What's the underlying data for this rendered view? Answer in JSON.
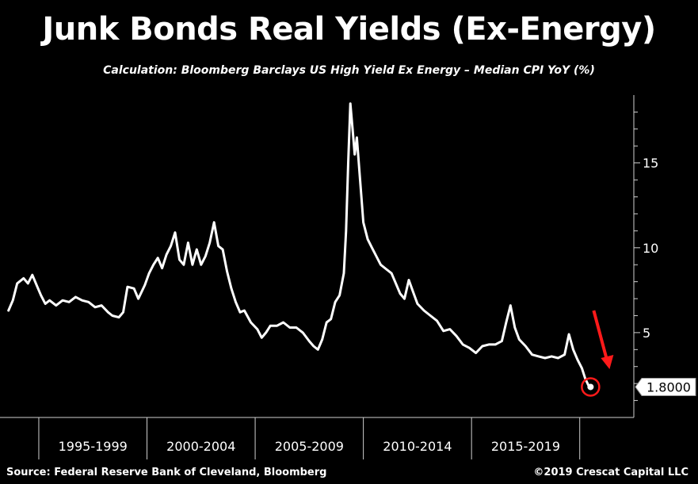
{
  "chart_data": {
    "type": "line",
    "title": "Junk Bonds Real Yields (Ex-Energy)",
    "subtitle": "Calculation: Bloomberg Barclays US High Yield Ex Energy – Median CPI YoY (%)",
    "xlabel": "",
    "ylabel": "",
    "ylim": [
      0,
      19
    ],
    "xlim": [
      1993.0,
      2022.0
    ],
    "y_ticks": [
      5,
      10,
      15
    ],
    "x_period_labels": [
      {
        "label": "1995-1999",
        "center": 1997.0
      },
      {
        "label": "2000-2004",
        "center": 2002.0
      },
      {
        "label": "2005-2009",
        "center": 2007.0
      },
      {
        "label": "2010-2014",
        "center": 2012.0
      },
      {
        "label": "2015-2019",
        "center": 2017.0
      }
    ],
    "period_dividers": [
      1994.5,
      1999.5,
      2004.5,
      2009.5,
      2014.5,
      2019.5
    ],
    "grid": false,
    "last_value_label": "1.8000",
    "series": [
      {
        "color": "#ffffff",
        "points": [
          [
            1993.1,
            6.3
          ],
          [
            1993.3,
            6.9
          ],
          [
            1993.5,
            7.9
          ],
          [
            1993.8,
            8.2
          ],
          [
            1994.0,
            7.9
          ],
          [
            1994.2,
            8.4
          ],
          [
            1994.4,
            7.8
          ],
          [
            1994.6,
            7.2
          ],
          [
            1994.8,
            6.7
          ],
          [
            1995.0,
            6.9
          ],
          [
            1995.3,
            6.6
          ],
          [
            1995.6,
            6.9
          ],
          [
            1995.9,
            6.8
          ],
          [
            1996.2,
            7.1
          ],
          [
            1996.5,
            6.9
          ],
          [
            1996.8,
            6.8
          ],
          [
            1997.1,
            6.5
          ],
          [
            1997.4,
            6.6
          ],
          [
            1997.7,
            6.2
          ],
          [
            1997.9,
            6.0
          ],
          [
            1998.2,
            5.9
          ],
          [
            1998.4,
            6.2
          ],
          [
            1998.6,
            7.7
          ],
          [
            1998.9,
            7.6
          ],
          [
            1999.1,
            7.0
          ],
          [
            1999.4,
            7.8
          ],
          [
            1999.6,
            8.5
          ],
          [
            1999.8,
            9.0
          ],
          [
            2000.0,
            9.4
          ],
          [
            2000.2,
            8.8
          ],
          [
            2000.4,
            9.6
          ],
          [
            2000.6,
            10.1
          ],
          [
            2000.8,
            10.9
          ],
          [
            2001.0,
            9.3
          ],
          [
            2001.2,
            9.0
          ],
          [
            2001.4,
            10.3
          ],
          [
            2001.6,
            9.0
          ],
          [
            2001.8,
            9.9
          ],
          [
            2002.0,
            9.0
          ],
          [
            2002.2,
            9.5
          ],
          [
            2002.4,
            10.3
          ],
          [
            2002.6,
            11.5
          ],
          [
            2002.8,
            10.1
          ],
          [
            2003.0,
            9.9
          ],
          [
            2003.2,
            8.6
          ],
          [
            2003.4,
            7.6
          ],
          [
            2003.6,
            6.8
          ],
          [
            2003.8,
            6.2
          ],
          [
            2004.0,
            6.3
          ],
          [
            2004.3,
            5.6
          ],
          [
            2004.6,
            5.2
          ],
          [
            2004.8,
            4.7
          ],
          [
            2005.0,
            5.0
          ],
          [
            2005.2,
            5.4
          ],
          [
            2005.5,
            5.4
          ],
          [
            2005.8,
            5.6
          ],
          [
            2006.1,
            5.3
          ],
          [
            2006.4,
            5.3
          ],
          [
            2006.7,
            5.0
          ],
          [
            2007.0,
            4.5
          ],
          [
            2007.2,
            4.2
          ],
          [
            2007.4,
            4.0
          ],
          [
            2007.6,
            4.6
          ],
          [
            2007.8,
            5.6
          ],
          [
            2008.0,
            5.8
          ],
          [
            2008.2,
            6.8
          ],
          [
            2008.4,
            7.2
          ],
          [
            2008.6,
            8.5
          ],
          [
            2008.7,
            11.0
          ],
          [
            2008.8,
            15.0
          ],
          [
            2008.9,
            18.5
          ],
          [
            2009.0,
            17.0
          ],
          [
            2009.1,
            15.5
          ],
          [
            2009.2,
            16.5
          ],
          [
            2009.35,
            14.0
          ],
          [
            2009.5,
            11.5
          ],
          [
            2009.7,
            10.5
          ],
          [
            2009.9,
            10.0
          ],
          [
            2010.1,
            9.5
          ],
          [
            2010.3,
            9.0
          ],
          [
            2010.5,
            8.8
          ],
          [
            2010.8,
            8.5
          ],
          [
            2011.0,
            7.9
          ],
          [
            2011.2,
            7.3
          ],
          [
            2011.4,
            7.0
          ],
          [
            2011.6,
            8.1
          ],
          [
            2011.8,
            7.4
          ],
          [
            2012.0,
            6.7
          ],
          [
            2012.3,
            6.3
          ],
          [
            2012.6,
            6.0
          ],
          [
            2012.9,
            5.7
          ],
          [
            2013.2,
            5.1
          ],
          [
            2013.5,
            5.2
          ],
          [
            2013.8,
            4.8
          ],
          [
            2014.1,
            4.3
          ],
          [
            2014.4,
            4.1
          ],
          [
            2014.7,
            3.8
          ],
          [
            2015.0,
            4.2
          ],
          [
            2015.3,
            4.3
          ],
          [
            2015.6,
            4.3
          ],
          [
            2015.9,
            4.5
          ],
          [
            2016.1,
            5.6
          ],
          [
            2016.3,
            6.6
          ],
          [
            2016.5,
            5.3
          ],
          [
            2016.7,
            4.6
          ],
          [
            2017.0,
            4.2
          ],
          [
            2017.3,
            3.7
          ],
          [
            2017.6,
            3.6
          ],
          [
            2017.9,
            3.5
          ],
          [
            2018.2,
            3.6
          ],
          [
            2018.5,
            3.5
          ],
          [
            2018.8,
            3.7
          ],
          [
            2019.0,
            4.9
          ],
          [
            2019.2,
            4.0
          ],
          [
            2019.4,
            3.4
          ],
          [
            2019.6,
            2.9
          ],
          [
            2019.75,
            2.3
          ],
          [
            2019.9,
            1.9
          ],
          [
            2020.0,
            1.8
          ]
        ]
      }
    ],
    "annotations": [
      {
        "type": "circle",
        "x": 2020.0,
        "y": 1.8,
        "color": "#ff1a1a"
      },
      {
        "type": "arrow",
        "color": "#ff1a1a"
      }
    ]
  },
  "footer": {
    "source": "Source: Federal Reserve Bank of Cleveland, Bloomberg",
    "credit": "©2019 Crescat Capital LLC"
  }
}
